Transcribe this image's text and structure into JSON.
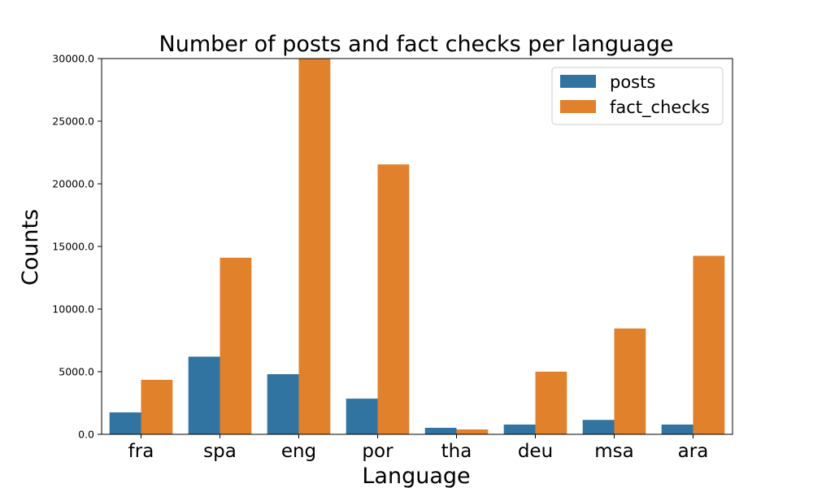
{
  "chart_data": {
    "type": "bar",
    "title": "Number of posts and fact checks per language",
    "xlabel": "Language",
    "ylabel": "Counts",
    "categories": [
      "fra",
      "spa",
      "eng",
      "por",
      "tha",
      "deu",
      "msa",
      "ara"
    ],
    "series": [
      {
        "name": "posts",
        "color": "#3274a1",
        "values": [
          1750,
          6200,
          4800,
          2850,
          520,
          780,
          1150,
          780
        ]
      },
      {
        "name": "fact_checks",
        "color": "#e1812c",
        "values": [
          4350,
          14100,
          30000,
          21550,
          390,
          5000,
          8450,
          14250
        ]
      }
    ],
    "ylim": [
      0,
      30000
    ],
    "yticks": [
      0,
      5000,
      10000,
      15000,
      20000,
      25000,
      30000
    ],
    "ytick_labels": [
      "0.0",
      "5000.0",
      "10000.0",
      "15000.0",
      "20000.0",
      "25000.0",
      "30000.0"
    ],
    "grid": false,
    "legend_position": "top-right"
  }
}
